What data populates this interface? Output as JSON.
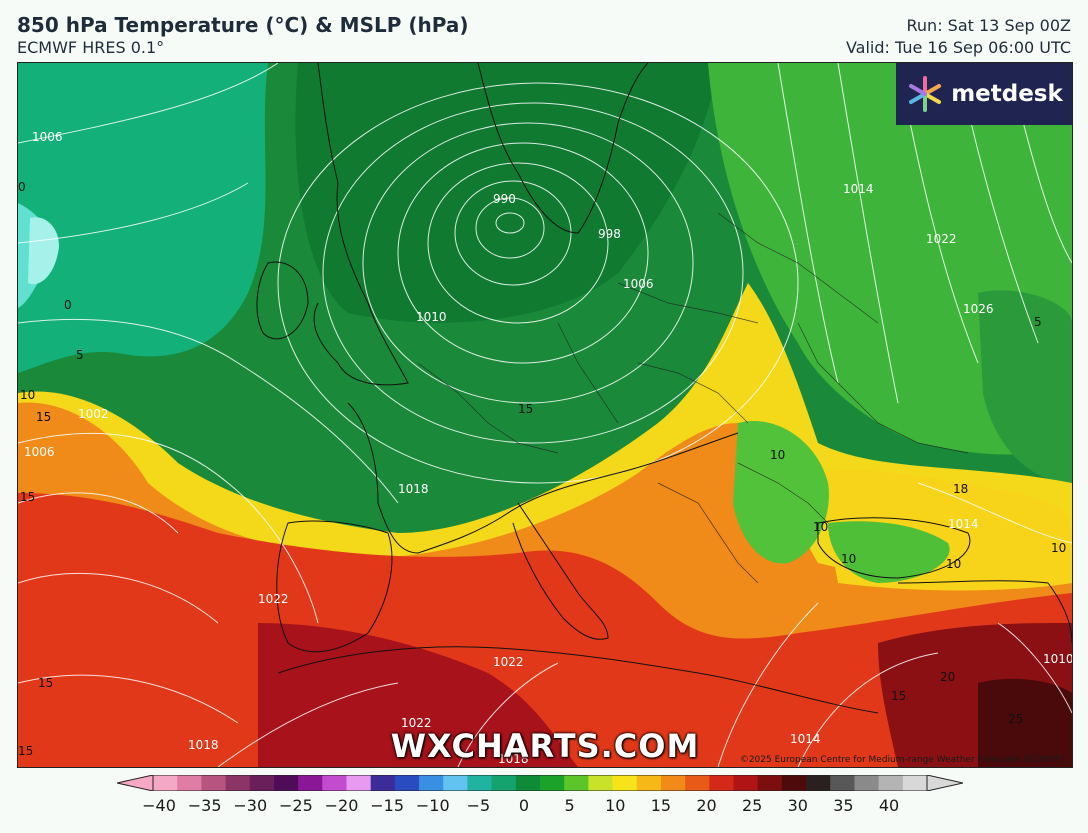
{
  "header": {
    "title": "850 hPa Temperature (°C) & MSLP (hPa)",
    "model": "ECMWF HRES 0.1°",
    "run": "Run: Sat 13 Sep 00Z",
    "valid": "Valid: Tue 16 Sep 06:00 UTC"
  },
  "logo": {
    "text": "metdesk",
    "icon": "pinwheel-icon"
  },
  "watermark": "WXCHARTS.COM",
  "copyright": "©2025 European Centre for Medium-range Weather Forecasts (ECMWF)",
  "colorbar": {
    "ticks": [
      "−40",
      "−35",
      "−30",
      "−25",
      "−20",
      "−15",
      "−10",
      "−5",
      "0",
      "5",
      "10",
      "15",
      "20",
      "25",
      "30",
      "35",
      "40"
    ],
    "colors": [
      "#f4a8c3",
      "#e07da5",
      "#b8557e",
      "#8c3466",
      "#6a1f5a",
      "#4f0d59",
      "#8a1896",
      "#c34bd0",
      "#e79af0",
      "#3b2c9a",
      "#2a4cc1",
      "#3a8fe2",
      "#62c3f0",
      "#20b3a0",
      "#14a36e",
      "#0e8a38",
      "#1aa22a",
      "#5bc52a",
      "#c8e22a",
      "#f7e31a",
      "#f6b816",
      "#f08a18",
      "#e85a18",
      "#d42818",
      "#b01414",
      "#7c0e10",
      "#4e0a0a",
      "#2b2020",
      "#585858",
      "#8a8a8a",
      "#b4b4b4",
      "#d8d8d8"
    ]
  },
  "map": {
    "isobar_labels": [
      "1006",
      "990",
      "998",
      "1006",
      "1010",
      "1002",
      "1006",
      "1014",
      "1022",
      "1026",
      "1018",
      "1022",
      "1022",
      "1018",
      "1014",
      "1022",
      "1014",
      "1010",
      "1018"
    ],
    "temperature_labels": [
      "0",
      "0",
      "5",
      "10",
      "15",
      "15",
      "10",
      "10",
      "10",
      "10",
      "15",
      "15",
      "20",
      "25",
      "18",
      "10",
      "5",
      "15",
      "15"
    ]
  }
}
